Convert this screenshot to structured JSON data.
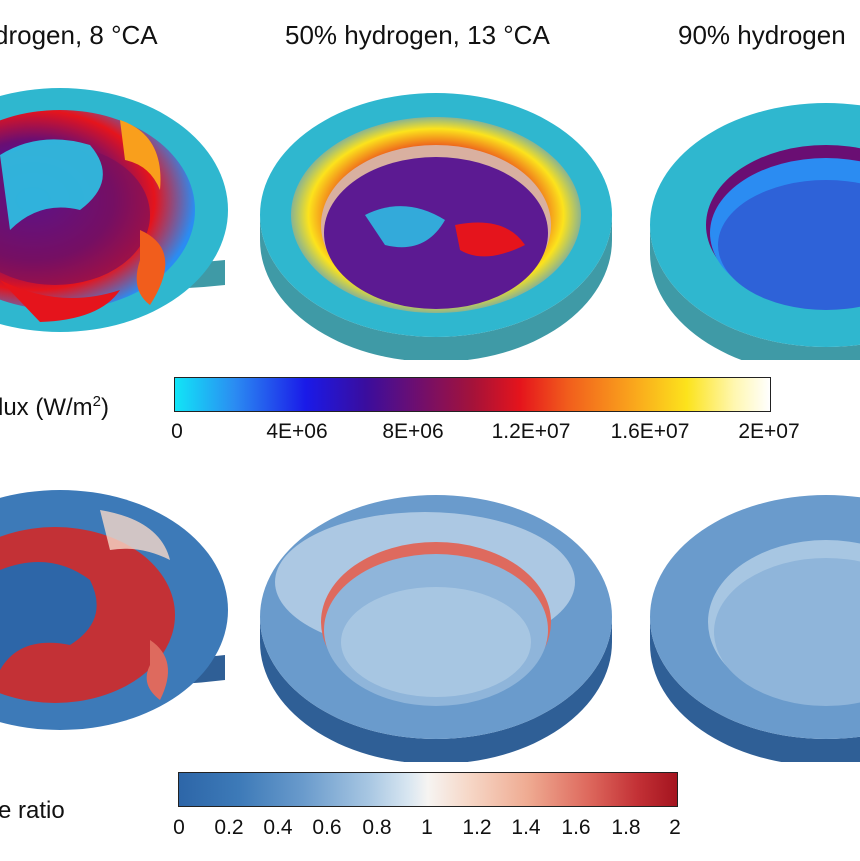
{
  "titles": [
    "drogen, 8 °CA",
    "50% hydrogen, 13 °CA",
    "90% hydrogen"
  ],
  "colorbar_top": {
    "label_main": "lux (W/m",
    "label_sup": "2",
    "label_close": ")",
    "ticks": [
      "0",
      "4E+06",
      "8E+06",
      "1.2E+07",
      "1.6E+07",
      "2E+07"
    ]
  },
  "colorbar_bottom": {
    "label": "e ratio",
    "ticks": [
      "0",
      "0.2",
      "0.4",
      "0.6",
      "0.8",
      "1",
      "1.2",
      "1.4",
      "1.6",
      "1.8",
      "2"
    ]
  },
  "colors": {
    "cyan_low": "#11e5f7",
    "blue_mid": "#1a1ae8",
    "red_high": "#e5141c",
    "yellow_max": "#fce31c",
    "ratio_low": "#2d66a8",
    "ratio_mid": "#f6f4f2",
    "ratio_high": "#a4141f"
  }
}
